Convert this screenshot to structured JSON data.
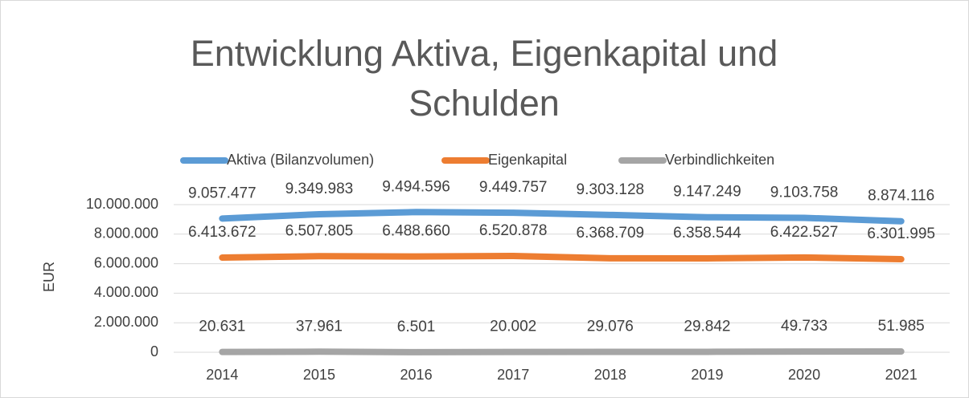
{
  "chart_data": {
    "type": "line",
    "title": "Entwicklung Aktiva, Eigenkapital und Schulden",
    "y_label": "EUR",
    "categories": [
      "2014",
      "2015",
      "2016",
      "2017",
      "2018",
      "2019",
      "2020",
      "2021"
    ],
    "series": [
      {
        "name": "Aktiva (Bilanzvolumen)",
        "color": "#5b9bd5",
        "values": [
          9057477,
          9349983,
          9494596,
          9449757,
          9303128,
          9147249,
          9103758,
          8874116
        ],
        "value_labels": [
          "9.057.477",
          "9.349.983",
          "9.494.596",
          "9.449.757",
          "9.303.128",
          "9.147.249",
          "9.103.758",
          "8.874.116"
        ]
      },
      {
        "name": "Eigenkapital",
        "color": "#ed7d31",
        "values": [
          6413672,
          6507805,
          6488660,
          6520878,
          6368709,
          6358544,
          6422527,
          6301995
        ],
        "value_labels": [
          "6.413.672",
          "6.507.805",
          "6.488.660",
          "6.520.878",
          "6.368.709",
          "6.358.544",
          "6.422.527",
          "6.301.995"
        ]
      },
      {
        "name": "Verbindlichkeiten",
        "color": "#a5a5a5",
        "values": [
          20631,
          37961,
          6501,
          20002,
          29076,
          29842,
          49733,
          51985
        ],
        "value_labels": [
          "20.631",
          "37.961",
          "6.501",
          "20.002",
          "29.076",
          "29.842",
          "49.733",
          "51.985"
        ]
      }
    ],
    "ylim": [
      0,
      10000000
    ],
    "yticks": [
      0,
      {
        "value": 2000000,
        "label": "2.000.000"
      },
      {
        "value": 4000000,
        "label": "4.000.000"
      },
      {
        "value": 6000000,
        "label": "6.000.000"
      },
      {
        "value": 8000000,
        "label": "8.000.000"
      },
      {
        "value": 10000000,
        "label": "10.000.000"
      }
    ],
    "grid": true,
    "legend": "top"
  }
}
